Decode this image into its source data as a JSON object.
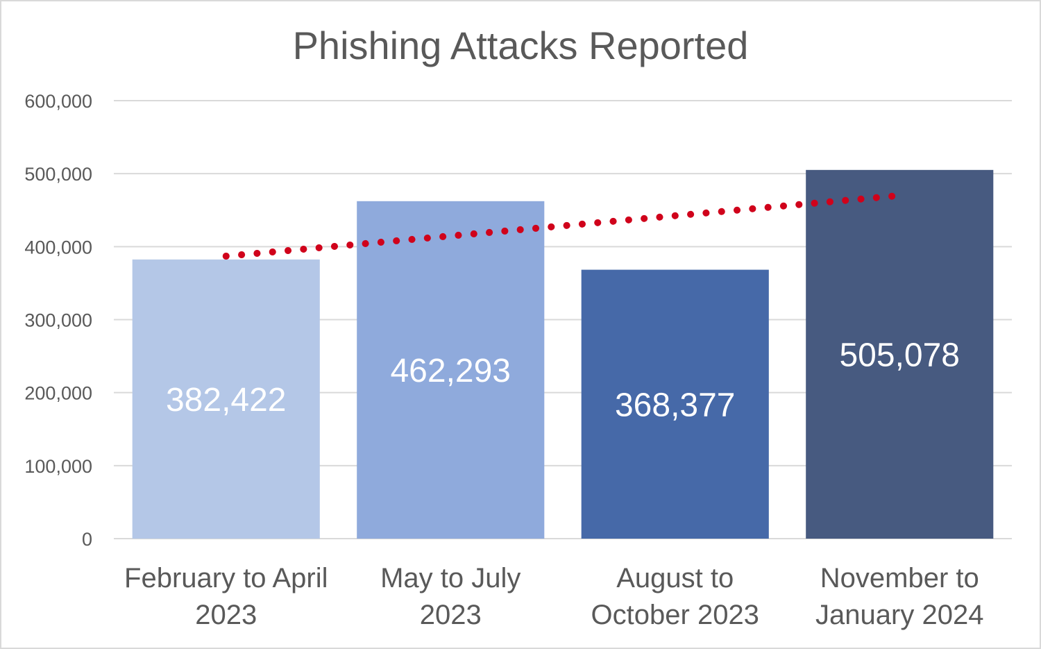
{
  "chart_data": {
    "type": "bar",
    "title": "Phishing Attacks Reported",
    "categories": [
      [
        "February to April",
        "2023"
      ],
      [
        "May to July",
        "2023"
      ],
      [
        "August to",
        "October 2023"
      ],
      [
        "November to",
        "January 2024"
      ]
    ],
    "values": [
      382422,
      462293,
      368377,
      505078
    ],
    "data_labels": [
      "382,422",
      "462,293",
      "368,377",
      "505,078"
    ],
    "bar_colors": [
      "#b4c7e7",
      "#8faadc",
      "#4669a8",
      "#475a80"
    ],
    "ylim": [
      0,
      600000
    ],
    "yticks": [
      0,
      100000,
      200000,
      300000,
      400000,
      500000,
      600000
    ],
    "ytick_labels": [
      "0",
      "100,000",
      "200,000",
      "300,000",
      "400,000",
      "500,000",
      "600,000"
    ],
    "xlabel": "",
    "ylabel": "",
    "grid": true,
    "legend": "none",
    "trendline": {
      "type": "linear",
      "style": "dotted",
      "color": "#d0021b",
      "start_value": 387000,
      "end_value": 470000
    }
  }
}
